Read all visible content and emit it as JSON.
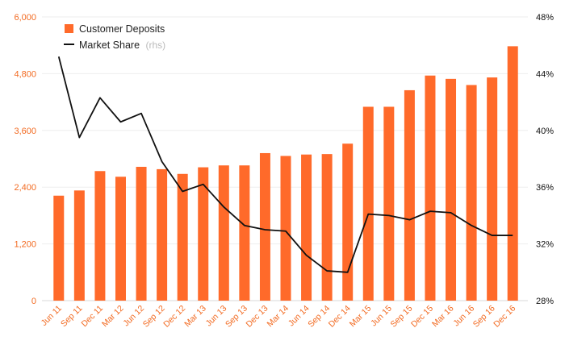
{
  "chart_data": {
    "type": "bar",
    "categories": [
      "Jun 11",
      "Sep 11",
      "Dec 11",
      "Mar 12",
      "Jun 12",
      "Sep 12",
      "Dec 12",
      "Mar 13",
      "Jun 13",
      "Sep 13",
      "Dec 13",
      "Mar 14",
      "Jun 14",
      "Sep 14",
      "Dec 14",
      "Mar 15",
      "Jun 15",
      "Sep 15",
      "Dec 15",
      "Mar 16",
      "Jun 16",
      "Sep 16",
      "Dec 16"
    ],
    "series": [
      {
        "name": "Customer Deposits",
        "type": "bar",
        "axis": "left",
        "color": "#ff6a2a",
        "values": [
          2220,
          2330,
          2740,
          2620,
          2830,
          2780,
          2680,
          2820,
          2860,
          2860,
          3120,
          3060,
          3090,
          3100,
          3320,
          4100,
          4100,
          4450,
          4760,
          4690,
          4560,
          4720,
          5380
        ]
      },
      {
        "name": "Market Share",
        "name_note": "(rhs)",
        "type": "line",
        "axis": "right",
        "color": "#111111",
        "values": [
          45.2,
          39.5,
          42.3,
          40.6,
          41.2,
          37.8,
          35.7,
          36.2,
          34.6,
          33.3,
          33.0,
          32.9,
          31.2,
          30.1,
          30.0,
          34.1,
          34.0,
          33.7,
          34.3,
          34.2,
          33.3,
          32.6,
          32.6
        ]
      }
    ],
    "y_left": {
      "ticks": [
        "0",
        "1,200",
        "2,400",
        "3,600",
        "4,800",
        "6,000"
      ],
      "min": 0,
      "max": 6000
    },
    "y_right": {
      "ticks": [
        "28%",
        "32%",
        "36%",
        "40%",
        "44%",
        "48%"
      ],
      "min": 28,
      "max": 48
    },
    "grid": true,
    "legend_position": "top-left"
  }
}
